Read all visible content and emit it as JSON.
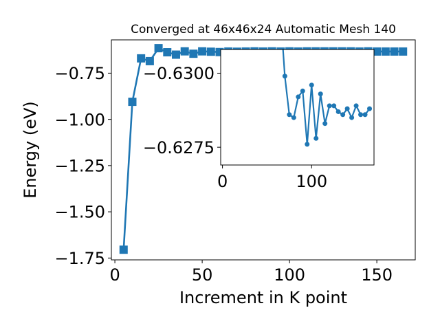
{
  "chart_data": [
    {
      "type": "line",
      "title": "Converged at 46x46x24 Automatic Mesh 140",
      "xlabel": "Increment in K point",
      "ylabel": "Energy (eV)",
      "xlim": [
        -2,
        172
      ],
      "ylim": [
        -1.76,
        -0.57
      ],
      "xticks": [
        0,
        50,
        100,
        150
      ],
      "xtick_labels": [
        "0",
        "50",
        "100",
        "150"
      ],
      "yticks": [
        -0.75,
        -1.0,
        -1.25,
        -1.5,
        -1.75
      ],
      "ytick_labels": [
        "−0.75",
        "−1.00",
        "−1.25",
        "−1.50",
        "−1.75"
      ],
      "grid": false,
      "legend": "none",
      "marker": "square",
      "color": "#1f77b4",
      "series": [
        {
          "x": [
            5,
            10,
            15,
            20,
            25,
            30,
            35,
            40,
            45,
            50,
            55,
            60,
            65,
            70,
            75,
            80,
            85,
            90,
            95,
            100,
            105,
            110,
            115,
            120,
            125,
            130,
            135,
            140,
            145,
            150,
            155,
            160,
            165
          ],
          "y": [
            -1.705,
            -0.905,
            -0.67,
            -0.685,
            -0.615,
            -0.637,
            -0.65,
            -0.632,
            -0.645,
            -0.632,
            -0.634,
            -0.636,
            -0.633,
            -0.634,
            -0.633,
            -0.632,
            -0.633,
            -0.632,
            -0.633,
            -0.632,
            -0.633,
            -0.632,
            -0.632,
            -0.632,
            -0.632,
            -0.632,
            -0.632,
            -0.633,
            -0.632,
            -0.633,
            -0.633,
            -0.633,
            -0.633
          ]
        }
      ]
    },
    {
      "type": "line",
      "title": "",
      "xlabel": "",
      "ylabel": "",
      "xlim": [
        -2,
        170
      ],
      "ylim": [
        -0.6269,
        -0.6308
      ],
      "xticks": [
        0,
        100
      ],
      "xtick_labels": [
        "0",
        "100"
      ],
      "yticks": [
        -0.63,
        -0.6275
      ],
      "ytick_labels": [
        "−0.6300",
        "−0.6275"
      ],
      "grid": false,
      "legend": "none",
      "marker": "circle",
      "color": "#1f77b4",
      "series": [
        {
          "x": [
            67,
            70,
            75,
            80,
            85,
            90,
            95,
            100,
            105,
            110,
            115,
            120,
            125,
            130,
            135,
            140,
            145,
            150,
            155,
            160,
            165
          ],
          "y": [
            -0.6312,
            -0.6299,
            -0.6286,
            -0.6285,
            -0.6292,
            -0.6294,
            -0.6276,
            -0.6296,
            -0.6278,
            -0.6293,
            -0.6283,
            -0.6289,
            -0.6289,
            -0.6287,
            -0.6286,
            -0.6288,
            -0.6285,
            -0.6289,
            -0.6286,
            -0.6286,
            -0.6288
          ]
        }
      ]
    }
  ]
}
